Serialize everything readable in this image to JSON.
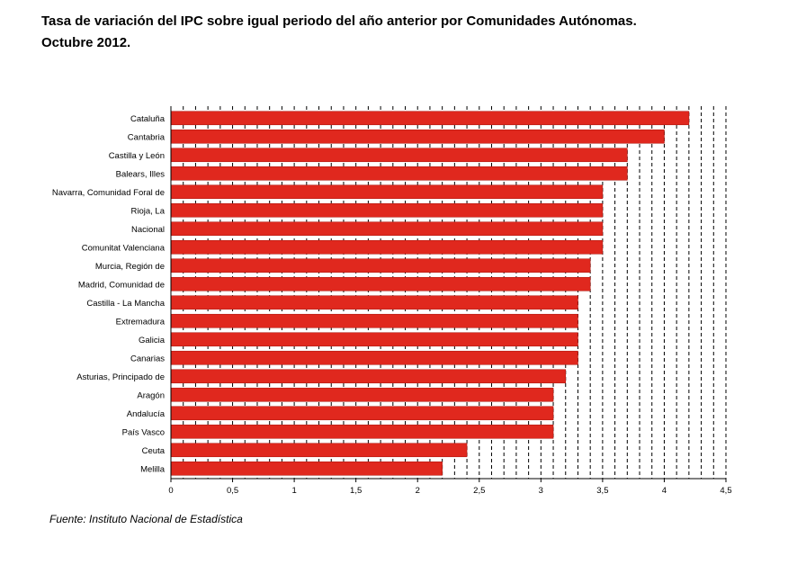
{
  "title_line1": "Tasa de variación del IPC sobre igual periodo del año anterior por Comunidades Autónomas.",
  "title_line2": "Octubre 2012.",
  "source": "Fuente: Instituto Nacional de Estadística",
  "colors": {
    "bar": "#e0281e",
    "bar_stroke": "#b01a12",
    "axis": "#000000",
    "grid": "#000000"
  },
  "chart_data": {
    "type": "bar",
    "orientation": "horizontal",
    "categories": [
      "Cataluña",
      "Cantabria",
      "Castilla y León",
      "Balears, Illes",
      "Navarra, Comunidad Foral de",
      "Rioja, La",
      "Nacional",
      "Comunitat Valenciana",
      "Murcia, Región de",
      "Madrid, Comunidad de",
      "Castilla - La Mancha",
      "Extremadura",
      "Galicia",
      "Canarias",
      "Asturias, Principado de",
      "Aragón",
      "Andalucía",
      "País Vasco",
      "Ceuta",
      "Melilla"
    ],
    "values": [
      4.2,
      4.0,
      3.7,
      3.7,
      3.5,
      3.5,
      3.5,
      3.5,
      3.4,
      3.4,
      3.3,
      3.3,
      3.3,
      3.3,
      3.2,
      3.1,
      3.1,
      3.1,
      2.4,
      2.2
    ],
    "xlim": [
      0,
      4.5
    ],
    "xticks": [
      "0",
      "0,5",
      "1",
      "1,5",
      "2",
      "2,5",
      "3",
      "3,5",
      "4",
      "4,5"
    ],
    "grid": "vertical dashed",
    "legend": "none"
  }
}
